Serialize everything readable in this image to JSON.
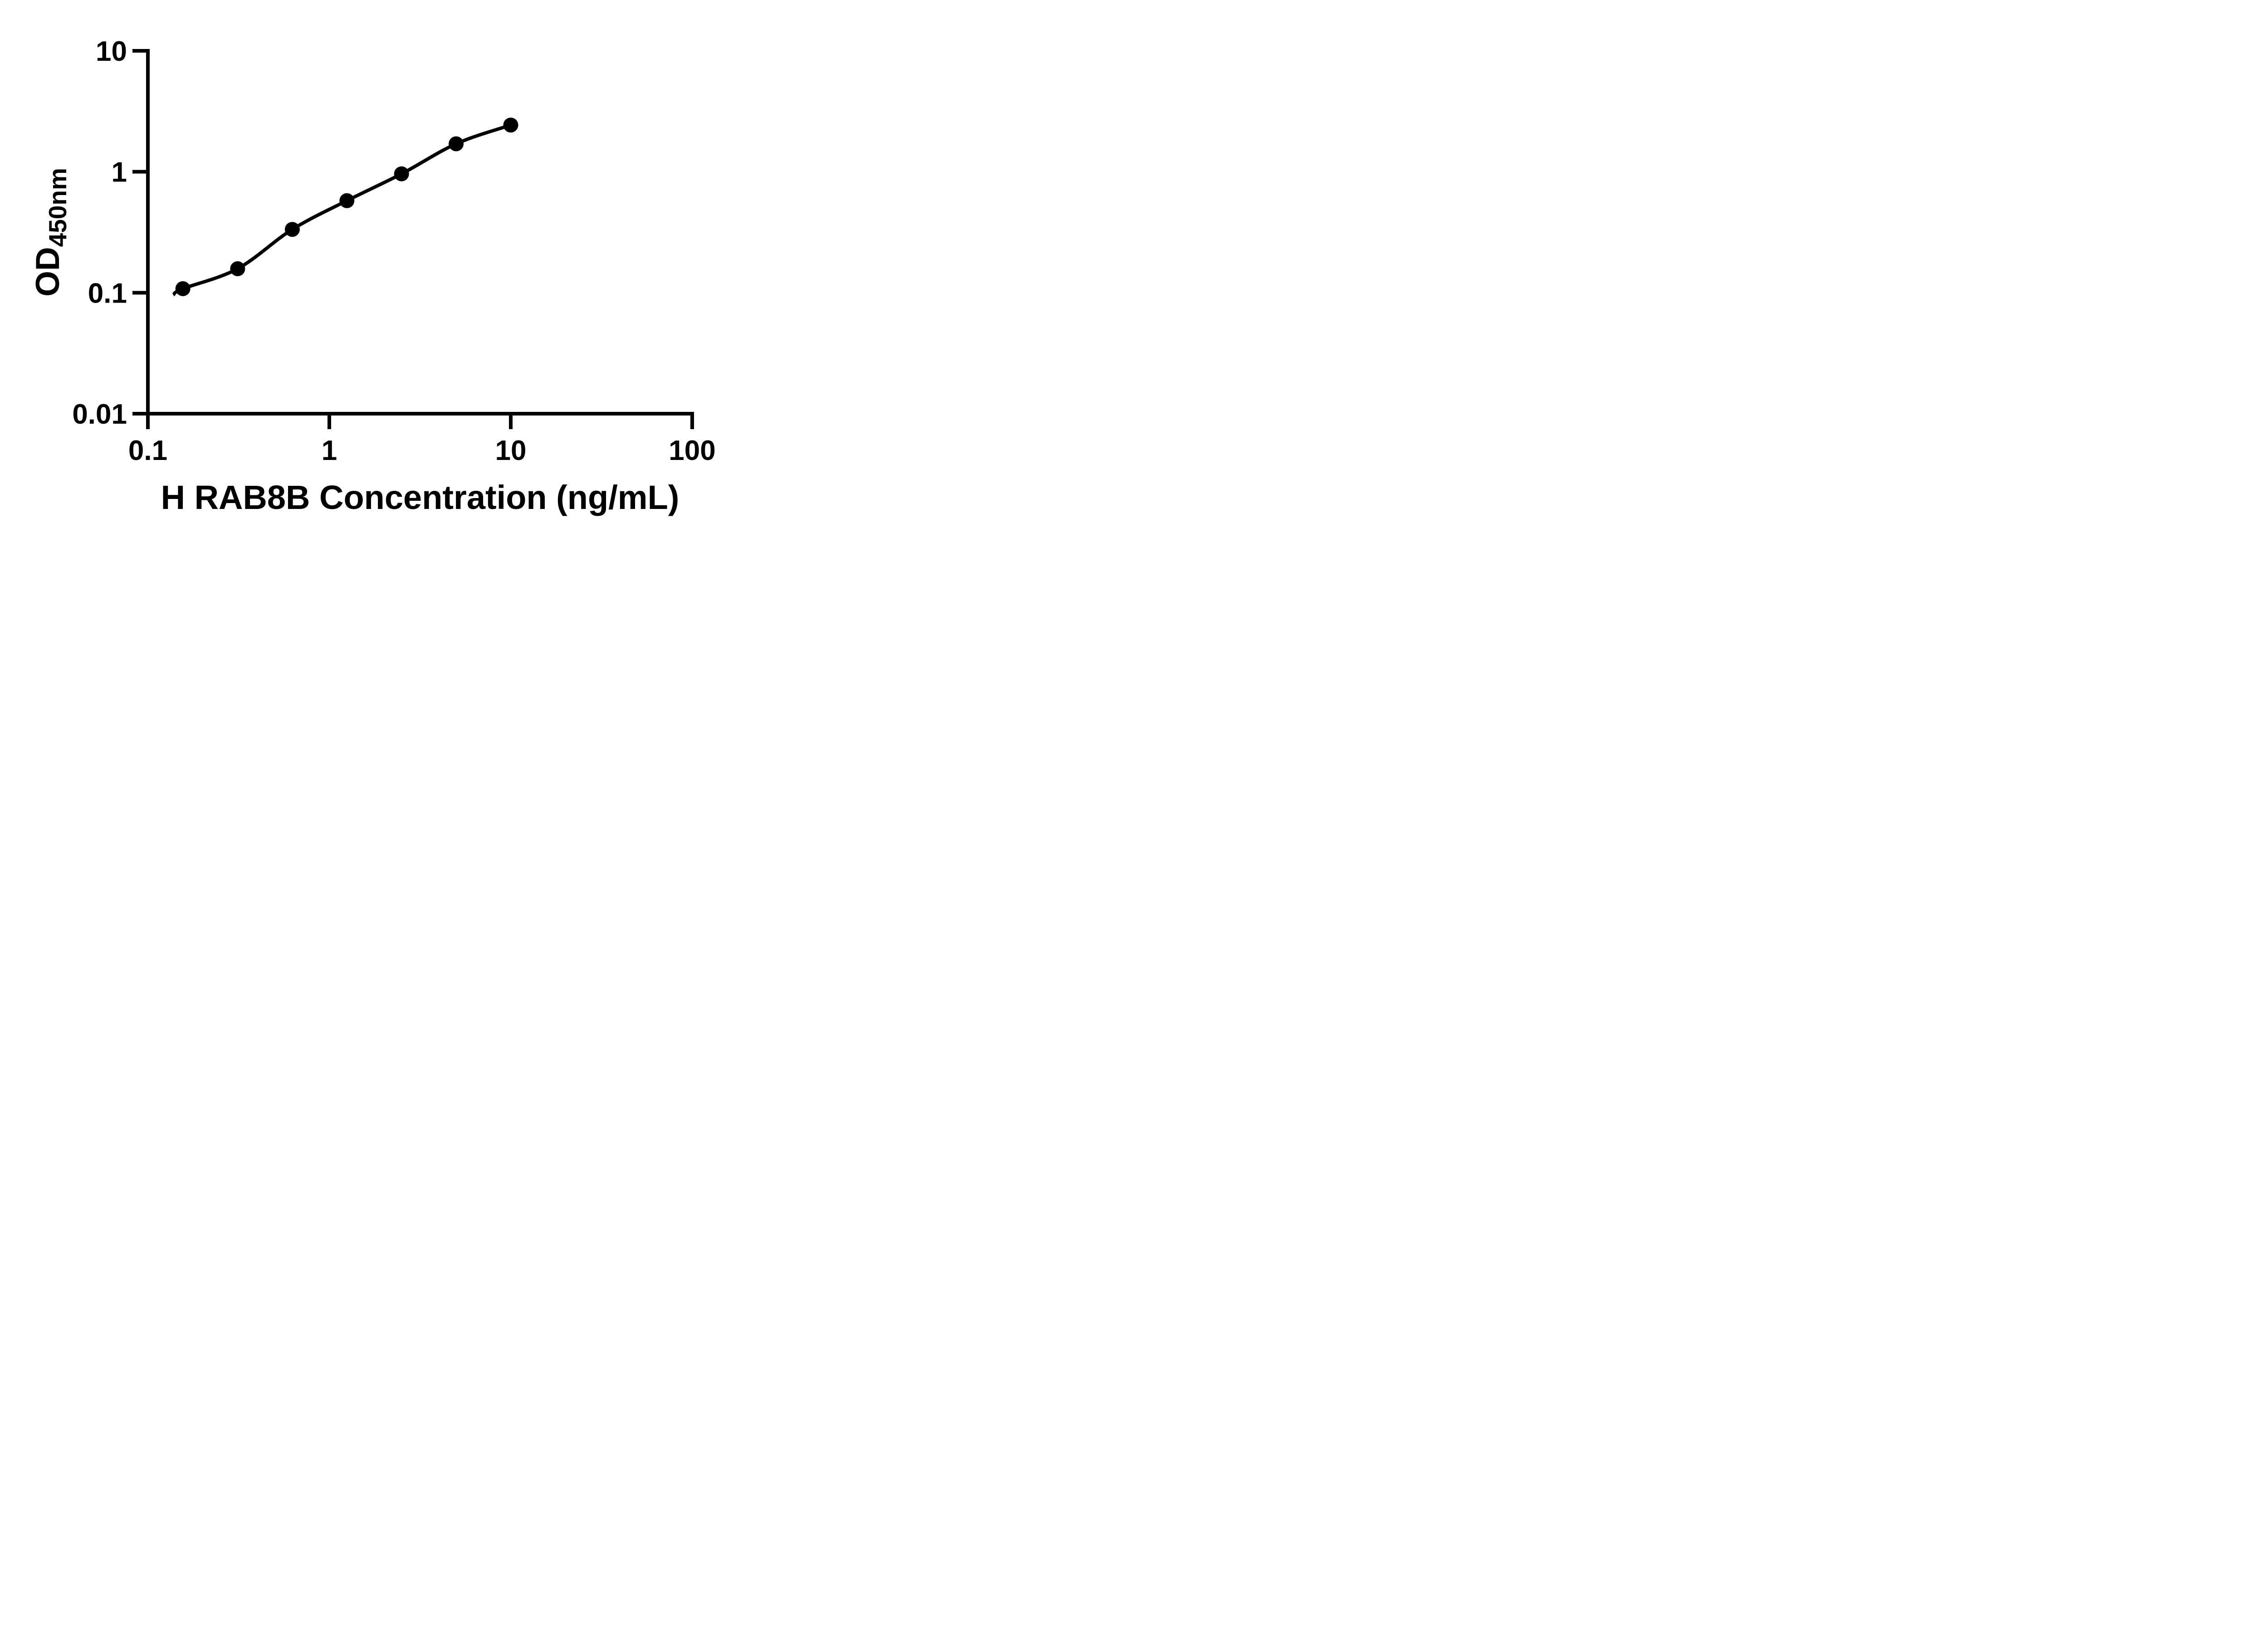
{
  "chart_data": {
    "type": "scatter",
    "title": "",
    "xlabel": "H RAB8B Concentration (ng/mL)",
    "ylabel": "OD450nm",
    "ylabel_main": "OD",
    "ylabel_sub": "450nm",
    "x_scale": "log10",
    "y_scale": "log10",
    "xlim": [
      0.1,
      100
    ],
    "ylim": [
      0.01,
      10
    ],
    "x_tick_labels": [
      "0.1",
      "1",
      "10",
      "100"
    ],
    "y_tick_labels": [
      "10",
      "1",
      "0.1",
      "0.01"
    ],
    "grid": false,
    "legend": "none",
    "marker_color": "#000000",
    "line_color": "#000000",
    "background_color": "#ffffff",
    "series": [
      {
        "x": [
          0.156,
          0.3125,
          0.625,
          1.25,
          2.5,
          5,
          10
        ],
        "y": [
          0.108,
          0.158,
          0.334,
          0.577,
          0.961,
          1.703,
          2.432
        ]
      }
    ],
    "fit_curve_start": {
      "x": 0.138,
      "y": 0.096
    }
  }
}
